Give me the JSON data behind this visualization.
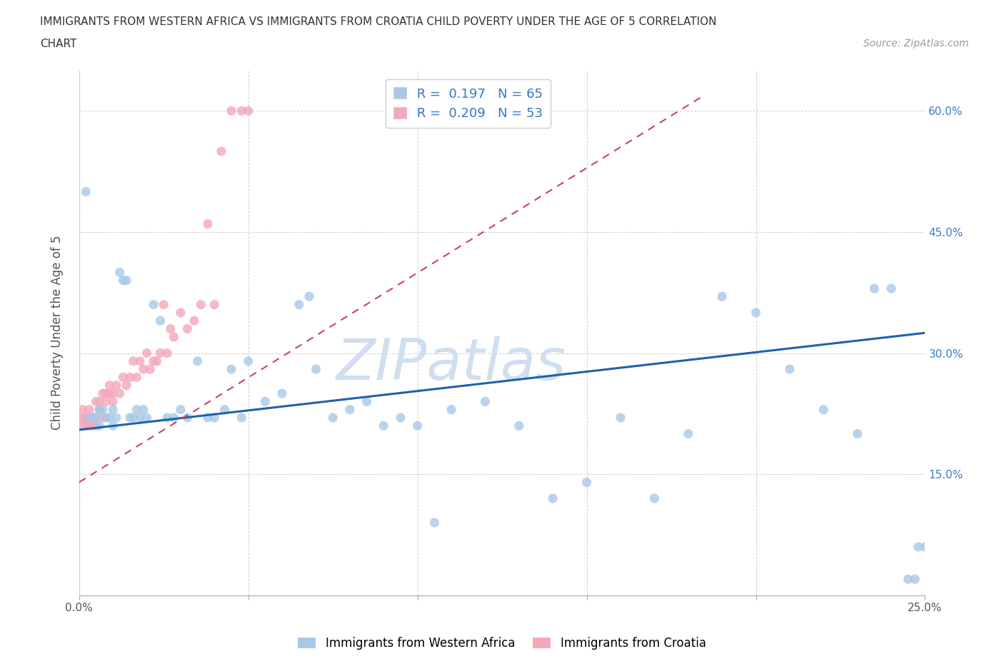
{
  "title_line1": "IMMIGRANTS FROM WESTERN AFRICA VS IMMIGRANTS FROM CROATIA CHILD POVERTY UNDER THE AGE OF 5 CORRELATION",
  "title_line2": "CHART",
  "source_text": "Source: ZipAtlas.com",
  "ylabel": "Child Poverty Under the Age of 5",
  "xlim": [
    0.0,
    0.25
  ],
  "ylim": [
    0.0,
    0.65
  ],
  "ytick_positions": [
    0.15,
    0.3,
    0.45,
    0.6
  ],
  "ytick_labels": [
    "15.0%",
    "30.0%",
    "45.0%",
    "60.0%"
  ],
  "R_blue": 0.197,
  "N_blue": 65,
  "R_pink": 0.209,
  "N_pink": 53,
  "blue_color": "#a8c8e8",
  "pink_color": "#f4a8b8",
  "trend_blue": "#2060b0",
  "trend_pink": "#d04060",
  "watermark": "ZIPatlas",
  "watermark_color": "#d0dff0",
  "legend_label_blue": "Immigrants from Western Africa",
  "legend_label_pink": "Immigrants from Croatia",
  "blue_trend_x": [
    0.0,
    0.25
  ],
  "blue_trend_y": [
    0.205,
    0.325
  ],
  "pink_trend_x": [
    0.0,
    0.185
  ],
  "pink_trend_y": [
    0.14,
    0.62
  ],
  "blue_scatter_x": [
    0.002,
    0.003,
    0.004,
    0.005,
    0.006,
    0.006,
    0.007,
    0.008,
    0.009,
    0.01,
    0.01,
    0.011,
    0.012,
    0.013,
    0.014,
    0.015,
    0.016,
    0.017,
    0.018,
    0.019,
    0.02,
    0.022,
    0.024,
    0.026,
    0.028,
    0.03,
    0.032,
    0.035,
    0.038,
    0.04,
    0.043,
    0.045,
    0.048,
    0.05,
    0.055,
    0.06,
    0.065,
    0.068,
    0.07,
    0.075,
    0.08,
    0.085,
    0.09,
    0.095,
    0.1,
    0.105,
    0.11,
    0.12,
    0.13,
    0.14,
    0.15,
    0.16,
    0.17,
    0.18,
    0.19,
    0.2,
    0.21,
    0.22,
    0.23,
    0.235,
    0.24,
    0.245,
    0.247,
    0.248,
    0.25
  ],
  "blue_scatter_y": [
    0.5,
    0.22,
    0.22,
    0.22,
    0.23,
    0.21,
    0.23,
    0.22,
    0.22,
    0.21,
    0.23,
    0.22,
    0.4,
    0.39,
    0.39,
    0.22,
    0.22,
    0.23,
    0.22,
    0.23,
    0.22,
    0.36,
    0.34,
    0.22,
    0.22,
    0.23,
    0.22,
    0.29,
    0.22,
    0.22,
    0.23,
    0.28,
    0.22,
    0.29,
    0.24,
    0.25,
    0.36,
    0.37,
    0.28,
    0.22,
    0.23,
    0.24,
    0.21,
    0.22,
    0.21,
    0.09,
    0.23,
    0.24,
    0.21,
    0.12,
    0.14,
    0.22,
    0.12,
    0.2,
    0.37,
    0.35,
    0.28,
    0.23,
    0.2,
    0.38,
    0.38,
    0.02,
    0.02,
    0.06,
    0.06
  ],
  "pink_scatter_x": [
    0.001,
    0.001,
    0.001,
    0.002,
    0.002,
    0.002,
    0.003,
    0.003,
    0.003,
    0.004,
    0.004,
    0.004,
    0.005,
    0.005,
    0.005,
    0.006,
    0.006,
    0.007,
    0.007,
    0.008,
    0.008,
    0.009,
    0.009,
    0.01,
    0.01,
    0.011,
    0.012,
    0.013,
    0.014,
    0.015,
    0.016,
    0.017,
    0.018,
    0.019,
    0.02,
    0.021,
    0.022,
    0.023,
    0.024,
    0.025,
    0.026,
    0.027,
    0.028,
    0.03,
    0.032,
    0.034,
    0.036,
    0.038,
    0.04,
    0.042,
    0.045,
    0.048,
    0.05
  ],
  "pink_scatter_y": [
    0.22,
    0.21,
    0.23,
    0.22,
    0.21,
    0.22,
    0.23,
    0.22,
    0.21,
    0.22,
    0.21,
    0.22,
    0.24,
    0.22,
    0.21,
    0.23,
    0.24,
    0.25,
    0.22,
    0.25,
    0.24,
    0.26,
    0.25,
    0.24,
    0.25,
    0.26,
    0.25,
    0.27,
    0.26,
    0.27,
    0.29,
    0.27,
    0.29,
    0.28,
    0.3,
    0.28,
    0.29,
    0.29,
    0.3,
    0.36,
    0.3,
    0.33,
    0.32,
    0.35,
    0.33,
    0.34,
    0.36,
    0.46,
    0.36,
    0.55,
    0.6,
    0.6,
    0.6
  ]
}
